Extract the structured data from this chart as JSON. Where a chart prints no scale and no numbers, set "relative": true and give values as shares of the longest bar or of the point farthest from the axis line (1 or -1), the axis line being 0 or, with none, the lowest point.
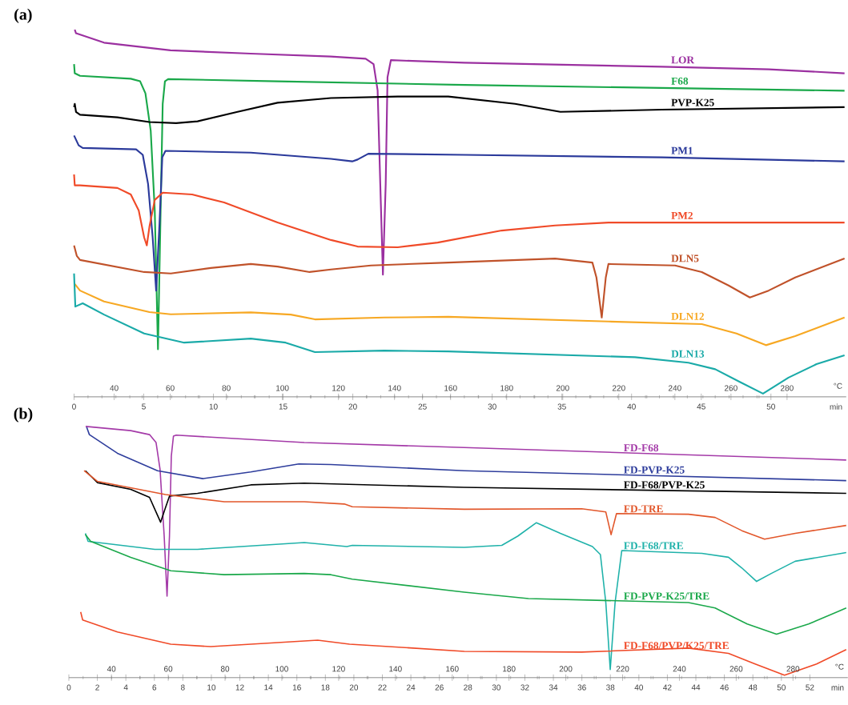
{
  "chart_data": [
    {
      "type": "line",
      "title": "(a)",
      "relative": true,
      "xlabel": "min",
      "x2label": "°C",
      "xlim": [
        0,
        55.4
      ],
      "xticks": [
        0,
        5,
        10,
        15,
        20,
        25,
        30,
        35,
        40,
        45,
        50
      ],
      "x2lim": [
        25.7,
        301.1
      ],
      "x2ticks": [
        40,
        60,
        80,
        100,
        120,
        140,
        160,
        180,
        200,
        220,
        240,
        260,
        280
      ],
      "series": [
        {
          "name": "LOR",
          "color": "#9b30a0",
          "x": [
            0.05,
            0.14,
            2.15,
            6.92,
            12.67,
            18.41,
            20.92,
            21.49,
            21.78,
            21.97,
            22.16,
            22.36,
            22.49,
            22.73,
            28.0,
            42.17,
            49.83,
            55.28
          ],
          "values": [
            1.0,
            0.99,
            0.964,
            0.943,
            0.934,
            0.926,
            0.92,
            0.905,
            0.833,
            0.576,
            0.327,
            0.576,
            0.869,
            0.916,
            0.909,
            0.898,
            0.891,
            0.88
          ]
        },
        {
          "name": "F68",
          "color": "#1aa84a",
          "x": [
            0,
            0.05,
            0.43,
            4.07,
            4.74,
            5.12,
            5.5,
            5.79,
            6.02,
            6.21,
            6.36,
            6.52,
            6.75,
            14.6,
            28.0,
            55.28
          ],
          "values": [
            0.905,
            0.88,
            0.873,
            0.865,
            0.858,
            0.825,
            0.722,
            0.503,
            0.122,
            0.503,
            0.796,
            0.858,
            0.864,
            0.858,
            0.848,
            0.832
          ]
        },
        {
          "name": "PVP-K25",
          "color": "#000000",
          "x": [
            0,
            0.05,
            0.14,
            0.43,
            3.11,
            5.41,
            7.32,
            8.86,
            11.73,
            14.6,
            18.43,
            23.22,
            26.85,
            31.64,
            34.89,
            42.17,
            55.28
          ],
          "values": [
            0.787,
            0.796,
            0.774,
            0.766,
            0.759,
            0.746,
            0.743,
            0.748,
            0.774,
            0.799,
            0.812,
            0.816,
            0.816,
            0.796,
            0.774,
            0.78,
            0.787
          ]
        },
        {
          "name": "PM1",
          "color": "#2b3a9b",
          "x": [
            0,
            0.33,
            0.62,
            4.45,
            4.93,
            5.31,
            5.64,
            5.89,
            6.13,
            6.33,
            6.56,
            12.68,
            18.43,
            19.96,
            20.34,
            21.11,
            28.0,
            42.17,
            55.28
          ],
          "values": [
            0.709,
            0.682,
            0.675,
            0.671,
            0.656,
            0.576,
            0.429,
            0.283,
            0.466,
            0.649,
            0.667,
            0.662,
            0.645,
            0.638,
            0.643,
            0.659,
            0.656,
            0.649,
            0.638
          ]
        },
        {
          "name": "PM2",
          "color": "#f04a28",
          "x": [
            0,
            0.05,
            0.43,
            3.11,
            4.07,
            4.64,
            5.03,
            5.22,
            5.41,
            5.79,
            6.36,
            8.47,
            10.77,
            14.6,
            18.43,
            20.34,
            23.22,
            26.09,
            30.68,
            34.51,
            38.34,
            55.28
          ],
          "values": [
            0.602,
            0.572,
            0.572,
            0.565,
            0.547,
            0.503,
            0.429,
            0.407,
            0.459,
            0.532,
            0.552,
            0.547,
            0.525,
            0.47,
            0.422,
            0.404,
            0.402,
            0.415,
            0.448,
            0.462,
            0.47,
            0.47
          ]
        },
        {
          "name": "DLN5",
          "color": "#c0522a",
          "x": [
            0,
            0.2,
            0.43,
            5.03,
            6.94,
            9.81,
            12.68,
            14.6,
            16.9,
            18.43,
            21.3,
            26.85,
            34.51,
            37.19,
            37.48,
            37.86,
            38.15,
            38.34,
            43.12,
            45.04,
            46.96,
            48.49,
            49.83,
            51.74,
            55.28
          ],
          "values": [
            0.407,
            0.378,
            0.367,
            0.334,
            0.33,
            0.345,
            0.356,
            0.349,
            0.334,
            0.341,
            0.352,
            0.36,
            0.371,
            0.36,
            0.319,
            0.209,
            0.319,
            0.356,
            0.352,
            0.334,
            0.297,
            0.264,
            0.283,
            0.319,
            0.371
          ]
        },
        {
          "name": "DLN12",
          "color": "#f7a823",
          "x": [
            0.05,
            0.43,
            2.15,
            5.41,
            6.94,
            12.68,
            15.55,
            17.28,
            22.26,
            26.85,
            38.34,
            45.04,
            47.53,
            49.64,
            51.74,
            55.28
          ],
          "values": [
            0.301,
            0.283,
            0.253,
            0.224,
            0.218,
            0.223,
            0.217,
            0.204,
            0.209,
            0.211,
            0.198,
            0.191,
            0.165,
            0.133,
            0.158,
            0.209
          ]
        },
        {
          "name": "DLN13",
          "color": "#1aaaa8",
          "x": [
            0,
            0.09,
            0.62,
            2.15,
            5.03,
            7.9,
            12.68,
            15.18,
            17.28,
            22.26,
            26.85,
            40.25,
            44.08,
            46.0,
            47.82,
            49.43,
            51.26,
            53.27,
            55.28
          ],
          "values": [
            0.33,
            0.239,
            0.248,
            0.217,
            0.165,
            0.14,
            0.151,
            0.14,
            0.114,
            0.118,
            0.116,
            0.1,
            0.085,
            0.067,
            0.031,
            0.0,
            0.044,
            0.081,
            0.105
          ]
        }
      ]
    },
    {
      "type": "line",
      "title": "(b)",
      "relative": true,
      "xlabel": "min",
      "x2label": "°C",
      "xlim": [
        0,
        54.66
      ],
      "xticks": [
        0,
        2,
        4,
        6,
        8,
        10,
        12,
        14,
        16,
        18,
        20,
        22,
        24,
        26,
        28,
        30,
        32,
        34,
        36,
        38,
        40,
        42,
        44,
        46,
        48,
        50,
        52
      ],
      "x2lim": [
        25,
        299.3
      ],
      "x2ticks": [
        40,
        60,
        80,
        100,
        120,
        140,
        160,
        180,
        200,
        220,
        240,
        260,
        280
      ],
      "series": [
        {
          "name": "FD-F68",
          "color": "#a43aa8",
          "x": [
            1.18,
            4.34,
            5.66,
            6.12,
            6.4,
            6.69,
            6.89,
            7.06,
            7.19,
            7.34,
            7.53,
            16.52,
            27.75,
            54.55
          ],
          "values": [
            1.0,
            0.983,
            0.967,
            0.935,
            0.827,
            0.559,
            0.318,
            0.559,
            0.881,
            0.961,
            0.965,
            0.935,
            0.915,
            0.865
          ]
        },
        {
          "name": "FD-PVP-K25",
          "color": "#2e3d9c",
          "x": [
            1.25,
            1.44,
            3.41,
            6.22,
            9.4,
            12.77,
            16.14,
            18.39,
            27.75,
            54.55
          ],
          "values": [
            0.997,
            0.967,
            0.892,
            0.822,
            0.79,
            0.817,
            0.849,
            0.847,
            0.822,
            0.782
          ]
        },
        {
          "name": "FD-F68/PVP-K25",
          "color": "#000000",
          "x": [
            1.16,
            1.53,
            2.01,
            4.34,
            5.66,
            6.12,
            6.44,
            6.74,
            7.06,
            9.03,
            12.77,
            16.52,
            27.75,
            54.55
          ],
          "values": [
            0.822,
            0.801,
            0.774,
            0.747,
            0.715,
            0.656,
            0.615,
            0.667,
            0.72,
            0.731,
            0.765,
            0.772,
            0.755,
            0.731
          ]
        },
        {
          "name": "FD-TRE",
          "color": "#e2572b",
          "x": [
            1.07,
            2.01,
            6.78,
            10.9,
            16.52,
            19.33,
            19.89,
            27.75,
            35.99,
            37.68,
            38.05,
            38.43,
            43.48,
            45.35,
            47.23,
            48.82,
            50.97,
            54.55
          ],
          "values": [
            0.822,
            0.779,
            0.726,
            0.697,
            0.697,
            0.688,
            0.677,
            0.667,
            0.669,
            0.656,
            0.565,
            0.65,
            0.647,
            0.634,
            0.581,
            0.547,
            0.57,
            0.602
          ]
        },
        {
          "name": "FD-F68/TRE",
          "color": "#20b2aa",
          "x": [
            1.16,
            1.35,
            6.03,
            9.03,
            16.52,
            19.51,
            19.89,
            27.75,
            30.38,
            31.5,
            32.81,
            34.49,
            36.74,
            37.3,
            37.68,
            37.99,
            38.33,
            38.8,
            44.42,
            46.29,
            47.23,
            48.26,
            49.29,
            50.97,
            54.55
          ],
          "values": [
            0.57,
            0.538,
            0.506,
            0.506,
            0.533,
            0.517,
            0.522,
            0.514,
            0.522,
            0.559,
            0.613,
            0.57,
            0.517,
            0.485,
            0.292,
            0.023,
            0.292,
            0.501,
            0.49,
            0.474,
            0.431,
            0.377,
            0.409,
            0.458,
            0.493
          ]
        },
        {
          "name": "FD-PVP-K25/TRE",
          "color": "#1aa84a",
          "x": [
            1.16,
            1.53,
            4.34,
            7.15,
            10.9,
            16.52,
            18.39,
            19.89,
            27.75,
            32.25,
            43.48,
            45.35,
            47.6,
            49.66,
            51.91,
            54.55
          ],
          "values": [
            0.565,
            0.538,
            0.474,
            0.42,
            0.404,
            0.409,
            0.404,
            0.386,
            0.334,
            0.308,
            0.292,
            0.27,
            0.206,
            0.165,
            0.206,
            0.27
          ]
        },
        {
          "name": "FD-F68/PVP/K25/TRE",
          "color": "#f04a28",
          "x": [
            0.83,
            0.97,
            3.41,
            7.15,
            9.96,
            17.46,
            19.7,
            27.75,
            35.99,
            43.48,
            46.29,
            48.16,
            50.22,
            52.47,
            54.55
          ],
          "values": [
            0.254,
            0.222,
            0.174,
            0.125,
            0.115,
            0.141,
            0.125,
            0.096,
            0.093,
            0.109,
            0.088,
            0.045,
            0.0,
            0.045,
            0.103
          ]
        }
      ]
    }
  ]
}
